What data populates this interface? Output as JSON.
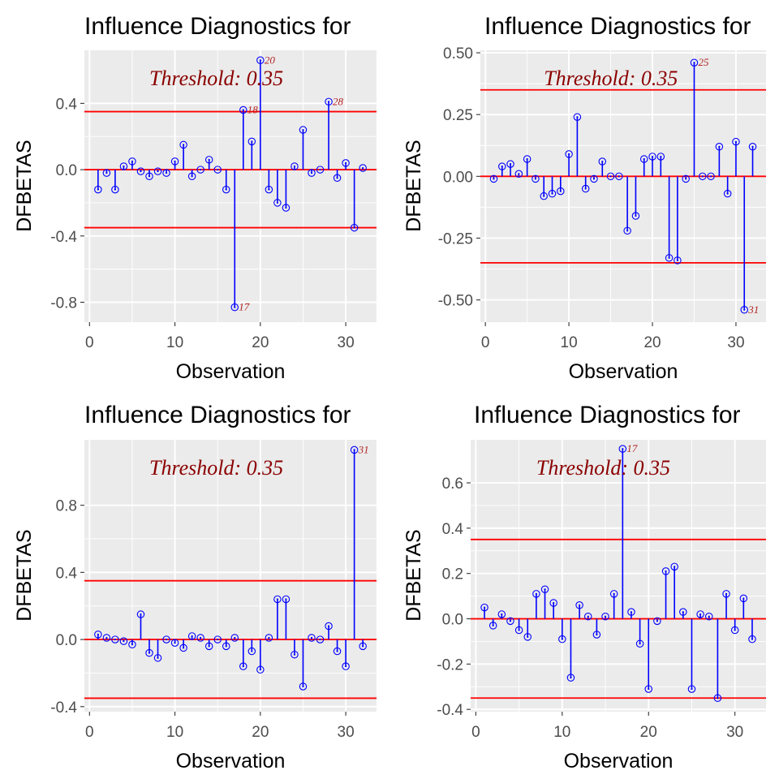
{
  "threshold_label": "Threshold: 0.35",
  "colors": {
    "panel_bg": "#ebebeb",
    "grid": "#ffffff",
    "stem": "#0000ff",
    "threshold_line": "#ff0000",
    "threshold_text": "#8b0000",
    "label_text": "#b22222",
    "axis_text": "#4d4d4d",
    "title_text": "#000000"
  },
  "chart_data": [
    {
      "type": "scatter",
      "title": "Influence Diagnostics for",
      "xlabel": "Observation",
      "ylabel": "DFBETAS",
      "threshold": 0.35,
      "xlim": [
        -0.6,
        33.6
      ],
      "ylim": [
        -0.92,
        0.72
      ],
      "xticks": [
        0,
        10,
        20,
        30
      ],
      "yticks": [
        -0.8,
        -0.4,
        0.0,
        0.4
      ],
      "ytick_labels": [
        "-0.8",
        "-0.4",
        "0.0",
        "0.4"
      ],
      "x": [
        1,
        2,
        3,
        4,
        5,
        6,
        7,
        8,
        9,
        10,
        11,
        12,
        13,
        14,
        15,
        16,
        17,
        18,
        19,
        20,
        21,
        22,
        23,
        24,
        25,
        26,
        27,
        28,
        29,
        30,
        31,
        32
      ],
      "y": [
        -0.12,
        -0.02,
        -0.12,
        0.02,
        0.05,
        -0.01,
        -0.04,
        -0.01,
        -0.02,
        0.05,
        0.15,
        -0.04,
        0.0,
        0.06,
        0.0,
        -0.12,
        -0.83,
        0.36,
        0.17,
        0.66,
        -0.12,
        -0.2,
        -0.23,
        0.02,
        0.24,
        -0.02,
        0.0,
        0.41,
        -0.05,
        0.04,
        -0.35,
        0.01
      ],
      "labeled_points": [
        17,
        18,
        20,
        28
      ]
    },
    {
      "type": "scatter",
      "title": "Influence Diagnostics for",
      "xlabel": "Observation",
      "ylabel": "DFBETAS",
      "threshold": 0.35,
      "xlim": [
        -0.6,
        33.6
      ],
      "ylim": [
        -0.59,
        0.51
      ],
      "xticks": [
        0,
        10,
        20,
        30
      ],
      "yticks": [
        -0.5,
        -0.25,
        0.0,
        0.25,
        0.5
      ],
      "ytick_labels": [
        "-0.50",
        "-0.25",
        "0.00",
        "0.25",
        "0.50"
      ],
      "x": [
        1,
        2,
        3,
        4,
        5,
        6,
        7,
        8,
        9,
        10,
        11,
        12,
        13,
        14,
        15,
        16,
        17,
        18,
        19,
        20,
        21,
        22,
        23,
        24,
        25,
        26,
        27,
        28,
        29,
        30,
        31,
        32
      ],
      "y": [
        -0.01,
        0.04,
        0.05,
        0.01,
        0.07,
        -0.01,
        -0.08,
        -0.07,
        -0.06,
        0.09,
        0.24,
        -0.05,
        -0.01,
        0.06,
        0.0,
        0.0,
        -0.22,
        -0.16,
        0.07,
        0.08,
        0.08,
        -0.33,
        -0.34,
        -0.01,
        0.46,
        0.0,
        0.0,
        0.12,
        -0.07,
        0.14,
        -0.54,
        0.12
      ],
      "labeled_points": [
        25,
        31
      ]
    },
    {
      "type": "scatter",
      "title": "Influence Diagnostics for",
      "xlabel": "Observation",
      "ylabel": "DFBETAS",
      "threshold": 0.35,
      "xlim": [
        -0.6,
        33.6
      ],
      "ylim": [
        -0.43,
        1.19
      ],
      "xticks": [
        0,
        10,
        20,
        30
      ],
      "yticks": [
        -0.4,
        0.0,
        0.4,
        0.8
      ],
      "ytick_labels": [
        "-0.4",
        "0.0",
        "0.4",
        "0.8"
      ],
      "x": [
        1,
        2,
        3,
        4,
        5,
        6,
        7,
        8,
        9,
        10,
        11,
        12,
        13,
        14,
        15,
        16,
        17,
        18,
        19,
        20,
        21,
        22,
        23,
        24,
        25,
        26,
        27,
        28,
        29,
        30,
        31,
        32
      ],
      "y": [
        0.03,
        0.01,
        0.0,
        -0.01,
        -0.03,
        0.15,
        -0.08,
        -0.11,
        0.0,
        -0.02,
        -0.05,
        0.02,
        0.01,
        -0.04,
        0.0,
        -0.04,
        0.01,
        -0.16,
        -0.07,
        -0.18,
        0.01,
        0.24,
        0.24,
        -0.09,
        -0.28,
        0.01,
        0.0,
        0.08,
        -0.07,
        -0.16,
        1.13,
        -0.04
      ],
      "labeled_points": [
        31
      ]
    },
    {
      "type": "scatter",
      "title": "Influence Diagnostics for",
      "xlabel": "Observation",
      "ylabel": "DFBETAS",
      "threshold": 0.35,
      "xlim": [
        -0.6,
        33.6
      ],
      "ylim": [
        -0.41,
        0.79
      ],
      "xticks": [
        0,
        10,
        20,
        30
      ],
      "yticks": [
        -0.4,
        -0.2,
        0.0,
        0.2,
        0.4,
        0.6
      ],
      "ytick_labels": [
        "-0.4",
        "-0.2",
        "0.0",
        "0.2",
        "0.4",
        "0.6"
      ],
      "x": [
        1,
        2,
        3,
        4,
        5,
        6,
        7,
        8,
        9,
        10,
        11,
        12,
        13,
        14,
        15,
        16,
        17,
        18,
        19,
        20,
        21,
        22,
        23,
        24,
        25,
        26,
        27,
        28,
        29,
        30,
        31,
        32
      ],
      "y": [
        0.05,
        -0.03,
        0.02,
        -0.01,
        -0.05,
        -0.08,
        0.11,
        0.13,
        0.07,
        -0.09,
        -0.26,
        0.06,
        0.01,
        -0.07,
        0.01,
        0.11,
        0.75,
        0.03,
        -0.11,
        -0.31,
        -0.01,
        0.21,
        0.23,
        0.03,
        -0.31,
        0.02,
        0.01,
        -0.35,
        0.11,
        -0.05,
        0.09,
        -0.09
      ],
      "labeled_points": [
        17
      ]
    }
  ]
}
